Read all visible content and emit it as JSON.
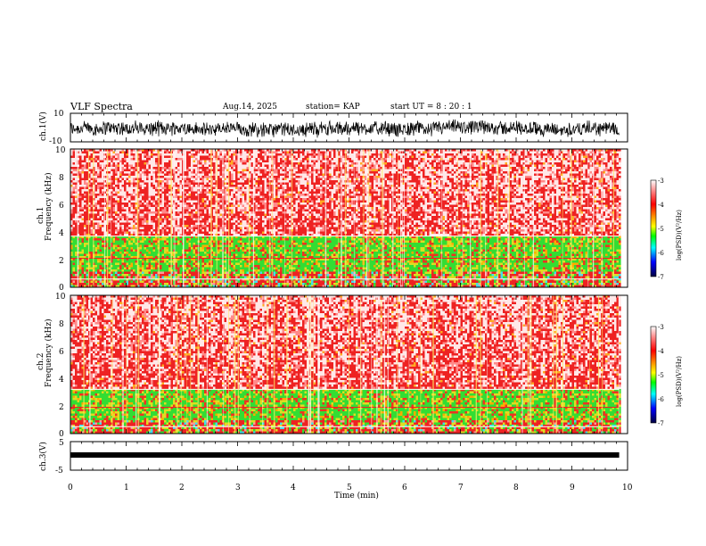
{
  "header": {
    "title": "VLF Spectra",
    "date": "Aug.14, 2025",
    "station": "station= KAP",
    "start": "start UT =  8 : 20 : 1"
  },
  "chart_data": [
    {
      "type": "line",
      "panel": "ch1-waveform",
      "ylabel": "ch.1(V)",
      "ylim": [
        -10,
        10
      ],
      "yticks": [
        "10",
        "-10"
      ],
      "xlim": [
        0,
        10
      ],
      "description_values": {
        "mean": -1,
        "amplitude": 6,
        "noisy": true
      }
    },
    {
      "type": "heatmap",
      "panel": "ch1-spectrogram",
      "ylabel_top": "ch.1",
      "ylabel": "Frequency (kHz)",
      "ylim": [
        0,
        10
      ],
      "yticks": [
        "0",
        "2",
        "4",
        "6",
        "8",
        "10"
      ],
      "xlim": [
        0,
        10
      ],
      "data_end_min": 9.85,
      "bands_khz": {
        "green_low": 1.2,
        "green_high": 3.4,
        "line_khz": [
          2.1,
          0.6,
          3.7
        ]
      },
      "colorbar": {
        "label": "log(PSD)(V²/Hz)",
        "ticks": [
          "-3",
          "-4",
          "-5",
          "-6",
          "-7"
        ],
        "range": [
          -7,
          -3
        ]
      }
    },
    {
      "type": "heatmap",
      "panel": "ch2-spectrogram",
      "ylabel_top": "ch.2",
      "ylabel": "Frequency (kHz)",
      "ylim": [
        0,
        10
      ],
      "yticks": [
        "0",
        "2",
        "4",
        "6",
        "8",
        "10"
      ],
      "xlim": [
        0,
        10
      ],
      "data_end_min": 9.85,
      "bands_khz": {
        "green_low": 1.0,
        "green_high": 3.0,
        "line_khz": [
          1.9,
          0.5,
          3.2
        ]
      },
      "colorbar": {
        "label": "log(PSD)(V²/Hz)",
        "ticks": [
          "-3",
          "-4",
          "-5",
          "-6",
          "-7"
        ],
        "range": [
          -7,
          -3
        ]
      }
    },
    {
      "type": "line",
      "panel": "ch3-waveform",
      "ylabel": "ch.3(V)",
      "ylim": [
        -5,
        5
      ],
      "yticks": [
        "5",
        "-5"
      ],
      "xlim": [
        0,
        10
      ],
      "description_values": {
        "mean": -1,
        "amplitude": 0.5
      }
    }
  ],
  "xaxis": {
    "label": "Time (min)",
    "ticks": [
      "0",
      "1",
      "2",
      "3",
      "4",
      "5",
      "6",
      "7",
      "8",
      "9",
      "10"
    ]
  },
  "colors": {
    "frame": "#000000",
    "trace": "#000000",
    "spectro_red": "#ee2222",
    "spectro_green": "#33dd33",
    "spectro_yellow": "#dddd22"
  }
}
